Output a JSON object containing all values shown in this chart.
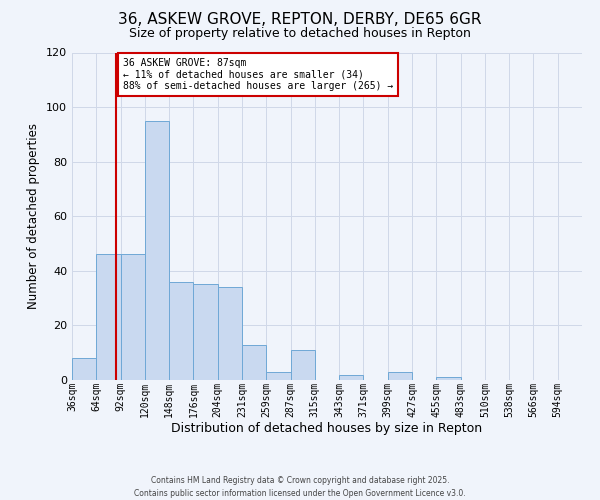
{
  "title": "36, ASKEW GROVE, REPTON, DERBY, DE65 6GR",
  "subtitle": "Size of property relative to detached houses in Repton",
  "xlabel": "Distribution of detached houses by size in Repton",
  "ylabel": "Number of detached properties",
  "bar_labels": [
    "36sqm",
    "64sqm",
    "92sqm",
    "120sqm",
    "148sqm",
    "176sqm",
    "204sqm",
    "231sqm",
    "259sqm",
    "287sqm",
    "315sqm",
    "343sqm",
    "371sqm",
    "399sqm",
    "427sqm",
    "455sqm",
    "483sqm",
    "510sqm",
    "538sqm",
    "566sqm",
    "594sqm"
  ],
  "bar_values": [
    8,
    46,
    46,
    95,
    36,
    35,
    34,
    13,
    3,
    11,
    0,
    2,
    0,
    3,
    0,
    1,
    0,
    0,
    0,
    0,
    0
  ],
  "bar_color": "#c9d9f0",
  "bar_edge_color": "#6fa8d6",
  "ylim": [
    0,
    120
  ],
  "yticks": [
    0,
    20,
    40,
    60,
    80,
    100,
    120
  ],
  "property_line_x": 87,
  "property_line_color": "#cc0000",
  "annotation_title": "36 ASKEW GROVE: 87sqm",
  "annotation_line1": "← 11% of detached houses are smaller (34)",
  "annotation_line2": "88% of semi-detached houses are larger (265) →",
  "annotation_box_color": "#ffffff",
  "annotation_box_edge_color": "#cc0000",
  "footer_line1": "Contains HM Land Registry data © Crown copyright and database right 2025.",
  "footer_line2": "Contains public sector information licensed under the Open Government Licence v3.0.",
  "background_color": "#f0f4fb",
  "grid_color": "#d0d8e8"
}
